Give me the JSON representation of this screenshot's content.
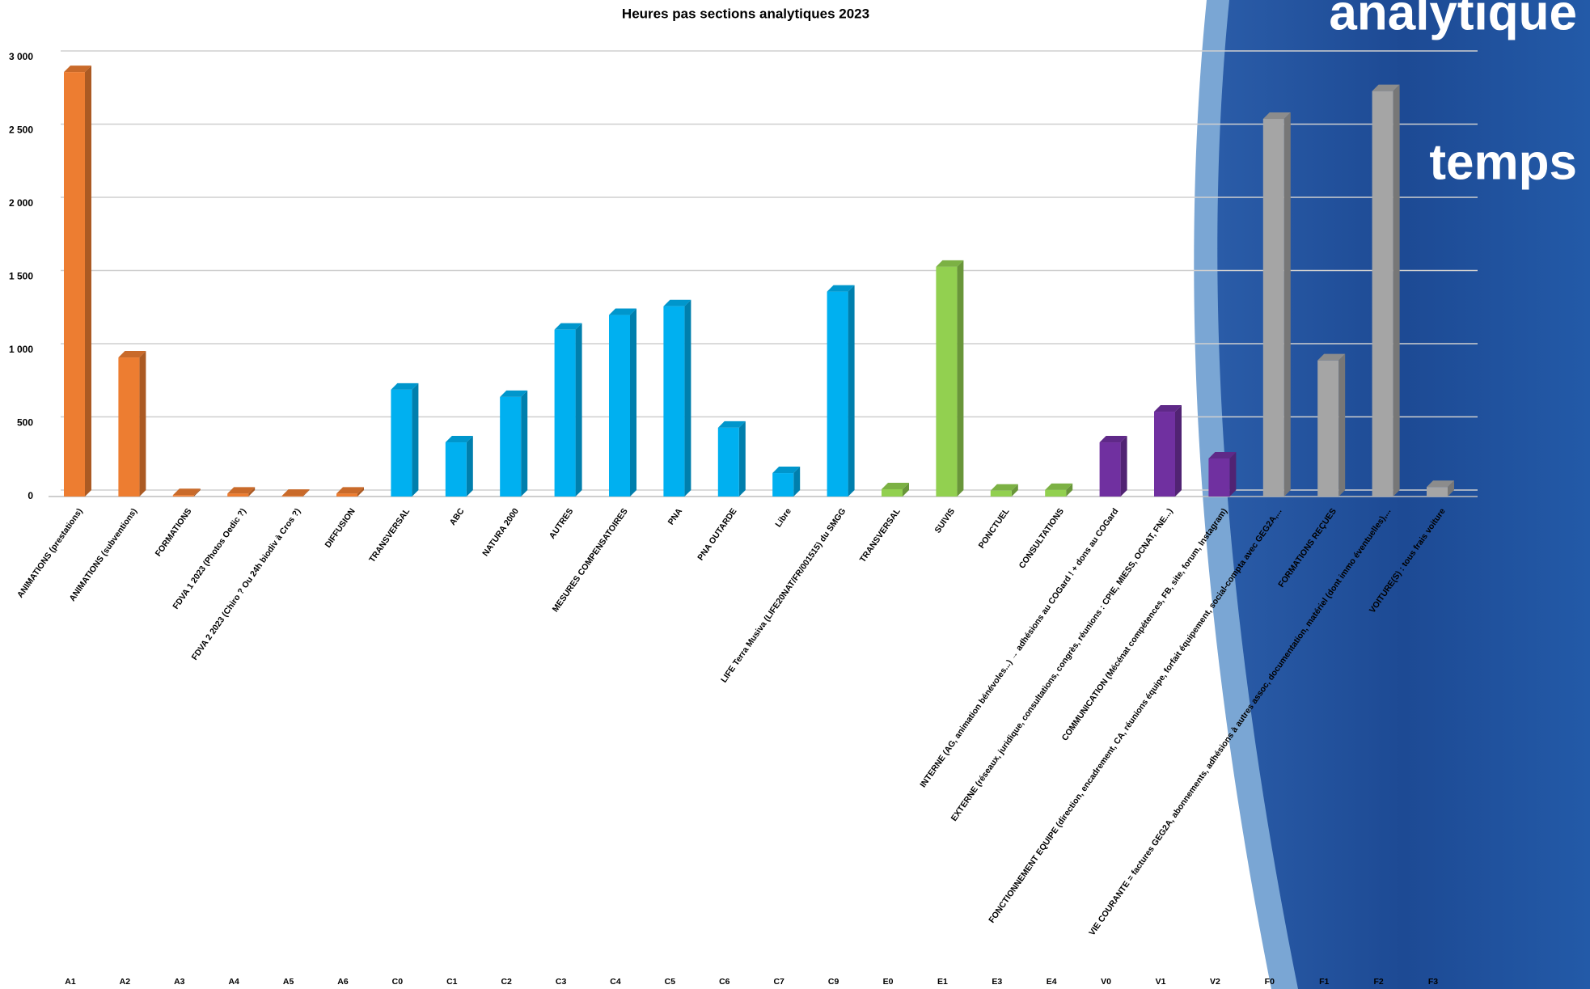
{
  "chart_data": {
    "type": "bar3d",
    "title": "Heures pas sections analytiques 2023",
    "background_texts": [
      "analytique",
      "temps"
    ],
    "categories": [
      "ANIMATIONS (prestations)",
      "ANIMATIONS (subventions)",
      "FORMATIONS",
      "FDVA 1 2023 (Photos Oedic ?)",
      "FDVA 2 2023 (Chiro ? Ou 24h biodiv à Cros ?)",
      "DIFFUSION",
      "TRANSVERSAL",
      "ABC",
      "NATURA 2000",
      "AUTRES",
      "MESURES COMPENSATOIRES",
      "PNA",
      "PNA OUTARDE",
      "Libre",
      "LIFE Terra Musiva (LIFE20NAT/FR/001515) du SMGG",
      "TRANSVERSAL",
      "SUIVIS",
      "PONCTUEL",
      "CONSULTATIONS",
      "INTERNE (AG, animation bénévoles...) → adhésions au COGard ! + dons au COGard",
      "EXTERNE (réseaux, juridique, consultations, congrès, réunions : CPIE, MIESS, OCNAT, FNE...)",
      "COMMUNICATION (Mécénat compétences, FB, site, forum, Instagram)",
      "FONCTIONNEMENT EQUIPE (direction, encadrement, CA, réunions équipe, forfait équipement, social-compta avec GEG2A,...",
      "FORMATIONS REÇUES",
      "VIE COURANTE = factures GEG2A, abonnements, adhésions à autres assoc, documentation, matériel (dont immo éventuelles),...",
      "VOITURE(S) : tous frais voiture"
    ],
    "category_codes": [
      "A1",
      "A2",
      "A3",
      "A4",
      "A5",
      "A6",
      "C0",
      "C1",
      "C2",
      "C3",
      "C4",
      "C5",
      "C6",
      "C7",
      "C9",
      "E0",
      "E1",
      "E3",
      "E4",
      "V0",
      "V1",
      "V2",
      "F0",
      "F1",
      "F2",
      "F3"
    ],
    "values": [
      2900,
      950,
      10,
      20,
      5,
      20,
      730,
      370,
      680,
      1140,
      1240,
      1300,
      470,
      160,
      1400,
      50,
      1570,
      40,
      45,
      370,
      580,
      260,
      2580,
      930,
      2770,
      65
    ],
    "colors": [
      "#ED7D31",
      "#ED7D31",
      "#ED7D31",
      "#ED7D31",
      "#ED7D31",
      "#ED7D31",
      "#00B0F0",
      "#00B0F0",
      "#00B0F0",
      "#00B0F0",
      "#00B0F0",
      "#00B0F0",
      "#00B0F0",
      "#00B0F0",
      "#00B0F0",
      "#92D050",
      "#92D050",
      "#92D050",
      "#92D050",
      "#7030A0",
      "#7030A0",
      "#7030A0",
      "#A5A5A5",
      "#A5A5A5",
      "#A5A5A5",
      "#A5A5A5"
    ],
    "ylim": [
      0,
      3000
    ],
    "yticks": [
      0,
      500,
      {
        "value": 1000,
        "label": "1 000"
      },
      {
        "value": 1500,
        "label": "1 500"
      },
      {
        "value": 2000,
        "label": "2 000"
      },
      {
        "value": 2500,
        "label": "2 500"
      },
      {
        "value": 3000,
        "label": "3 000"
      }
    ],
    "grid": true
  }
}
